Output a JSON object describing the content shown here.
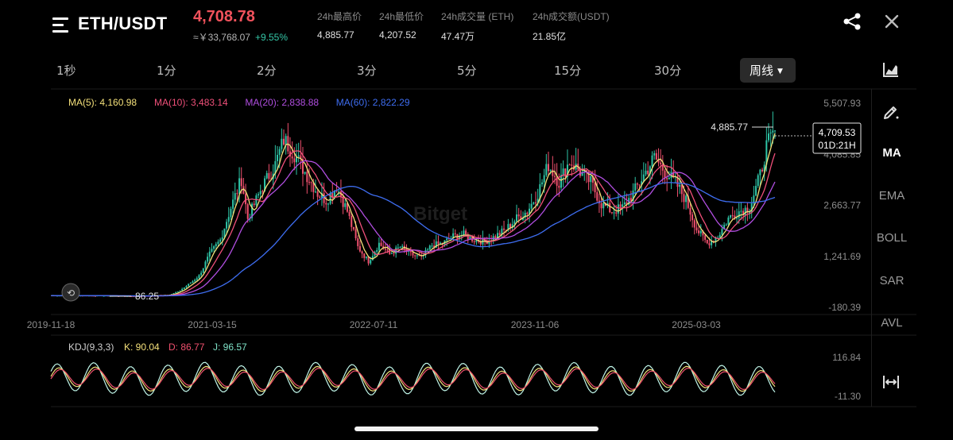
{
  "header": {
    "pair": "ETH/USDT",
    "last_price": "4,708.78",
    "cny_price": "≈￥33,768.07",
    "change_pct": "+9.55%",
    "stats": [
      {
        "label": "24h最高价",
        "value": "4,885.77"
      },
      {
        "label": "24h最低价",
        "value": "4,207.52"
      },
      {
        "label": "24h成交量 (ETH)",
        "value": "47.47万"
      },
      {
        "label": "24h成交额(USDT)",
        "value": "21.85亿"
      }
    ]
  },
  "tabs": [
    "1秒",
    "1分",
    "2分",
    "3分",
    "5分",
    "15分",
    "30分"
  ],
  "active_tab": "周线",
  "tools": [
    "MA",
    "EMA",
    "BOLL",
    "SAR",
    "AVL"
  ],
  "active_tool": "MA",
  "chart_data": {
    "type": "candlestick",
    "symbol": "ETH/USDT",
    "interval": "周线",
    "price_axis": [
      "5,507.93",
      "4,085.85",
      "2,663.77",
      "1,241.69",
      "-180.39"
    ],
    "price_axis_range": [
      -180.39,
      5507.93
    ],
    "date_axis": [
      "2019-11-18",
      "2021-03-15",
      "2022-07-11",
      "2023-11-06",
      "2025-03-03"
    ],
    "ma_legend": [
      {
        "name": "MA(5)",
        "value": "4,160.98",
        "color": "#f4e07a"
      },
      {
        "name": "MA(10)",
        "value": "3,483.14",
        "color": "#f0507a"
      },
      {
        "name": "MA(20)",
        "value": "2,838.88",
        "color": "#b04ee0"
      },
      {
        "name": "MA(60)",
        "value": "2,822.29",
        "color": "#3e6df0"
      }
    ],
    "high_marker": "4,885.77",
    "low_marker": "86.25",
    "current_price_label": "4,709.53",
    "countdown_label": "01D:21H",
    "price_path": [
      [
        0,
        150
      ],
      [
        20,
        145
      ],
      [
        40,
        130
      ],
      [
        55,
        160
      ],
      [
        60,
        250
      ],
      [
        66,
        500
      ],
      [
        70,
        700
      ],
      [
        75,
        1300
      ],
      [
        80,
        1700
      ],
      [
        85,
        2600
      ],
      [
        90,
        3400
      ],
      [
        93,
        2300
      ],
      [
        100,
        3200
      ],
      [
        106,
        3800
      ],
      [
        110,
        4500
      ],
      [
        115,
        4100
      ],
      [
        120,
        3600
      ],
      [
        126,
        3000
      ],
      [
        130,
        2800
      ],
      [
        135,
        3200
      ],
      [
        140,
        2500
      ],
      [
        145,
        1500
      ],
      [
        150,
        1100
      ],
      [
        155,
        1600
      ],
      [
        160,
        1300
      ],
      [
        165,
        1500
      ],
      [
        170,
        1300
      ],
      [
        175,
        1200
      ],
      [
        180,
        1550
      ],
      [
        185,
        1600
      ],
      [
        190,
        1800
      ],
      [
        195,
        1850
      ],
      [
        200,
        1700
      ],
      [
        205,
        1650
      ],
      [
        210,
        1800
      ],
      [
        215,
        2000
      ],
      [
        220,
        2300
      ],
      [
        225,
        2500
      ],
      [
        230,
        3000
      ],
      [
        235,
        3800
      ],
      [
        240,
        3300
      ],
      [
        245,
        3900
      ],
      [
        250,
        3600
      ],
      [
        255,
        3300
      ],
      [
        260,
        2700
      ],
      [
        265,
        2500
      ],
      [
        270,
        2600
      ],
      [
        275,
        3000
      ],
      [
        280,
        3500
      ],
      [
        285,
        4000
      ],
      [
        290,
        3600
      ],
      [
        295,
        3300
      ],
      [
        300,
        2800
      ],
      [
        305,
        2000
      ],
      [
        310,
        1600
      ],
      [
        315,
        1800
      ],
      [
        320,
        2300
      ],
      [
        325,
        2500
      ],
      [
        330,
        2600
      ],
      [
        335,
        3500
      ],
      [
        338,
        4300
      ],
      [
        342,
        4710
      ]
    ],
    "kdj": {
      "label": "KDJ(9,3,3)",
      "k": "90.04",
      "d": "86.77",
      "j": "96.57",
      "axis": [
        "116.84",
        "-11.30"
      ],
      "axis_range": [
        -11.3,
        116.84
      ]
    }
  }
}
